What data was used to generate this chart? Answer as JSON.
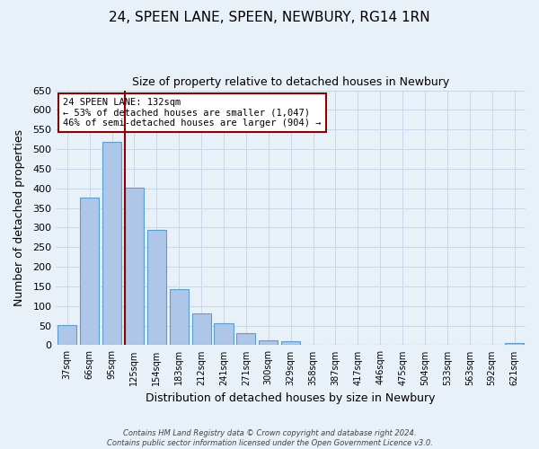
{
  "title": "24, SPEEN LANE, SPEEN, NEWBURY, RG14 1RN",
  "subtitle": "Size of property relative to detached houses in Newbury",
  "xlabel": "Distribution of detached houses by size in Newbury",
  "ylabel": "Number of detached properties",
  "bar_labels": [
    "37sqm",
    "66sqm",
    "95sqm",
    "125sqm",
    "154sqm",
    "183sqm",
    "212sqm",
    "241sqm",
    "271sqm",
    "300sqm",
    "329sqm",
    "358sqm",
    "387sqm",
    "417sqm",
    "446sqm",
    "475sqm",
    "504sqm",
    "533sqm",
    "563sqm",
    "592sqm",
    "621sqm"
  ],
  "bar_values": [
    52,
    376,
    519,
    402,
    293,
    142,
    82,
    55,
    30,
    13,
    11,
    0,
    0,
    0,
    0,
    0,
    0,
    0,
    0,
    0,
    5
  ],
  "bar_color": "#aec6e8",
  "bar_edge_color": "#5a9fd4",
  "ylim": [
    0,
    650
  ],
  "yticks": [
    0,
    50,
    100,
    150,
    200,
    250,
    300,
    350,
    400,
    450,
    500,
    550,
    600,
    650
  ],
  "property_label": "24 SPEEN LANE: 132sqm",
  "annotation_line1": "← 53% of detached houses are smaller (1,047)",
  "annotation_line2": "46% of semi-detached houses are larger (904) →",
  "vline_color": "#8b0000",
  "annotation_box_color": "#ffffff",
  "annotation_box_edge": "#8b0000",
  "grid_color": "#c8d8e8",
  "bg_color": "#e8f0f8",
  "footer_line1": "Contains HM Land Registry data © Crown copyright and database right 2024.",
  "footer_line2": "Contains public sector information licensed under the Open Government Licence v3.0."
}
